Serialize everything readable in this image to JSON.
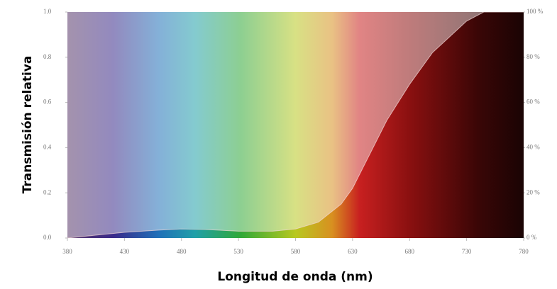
{
  "chart_data": {
    "type": "area",
    "y_label": "Transmisión relativa",
    "x_label": "Longitud de onda (nm)",
    "x": [
      380,
      400,
      430,
      460,
      480,
      500,
      530,
      560,
      580,
      600,
      620,
      630,
      640,
      660,
      680,
      700,
      730,
      745,
      780
    ],
    "values": [
      0,
      0.01,
      0.025,
      0.035,
      0.04,
      0.038,
      0.03,
      0.03,
      0.04,
      0.07,
      0.15,
      0.22,
      0.32,
      0.52,
      0.68,
      0.82,
      0.96,
      1.0,
      1.0
    ],
    "xlim": [
      380,
      780
    ],
    "xticks": [
      380,
      430,
      480,
      530,
      580,
      630,
      680,
      730,
      780
    ],
    "ylim": [
      0,
      1
    ],
    "yticks": [
      {
        "value": 0,
        "label": "0.0"
      },
      0.2,
      0.4,
      0.6,
      0.8,
      {
        "value": 1,
        "label": "1.0"
      }
    ],
    "y2lim": [
      0,
      100
    ],
    "y2ticks": [
      {
        "value": 0,
        "label": "0 %"
      },
      {
        "value": 20,
        "label": "20 %"
      },
      {
        "value": 40,
        "label": "40 %"
      },
      {
        "value": 60,
        "label": "60 %"
      },
      {
        "value": 80,
        "label": "80 %"
      },
      {
        "value": 100,
        "label": "100 %"
      }
    ],
    "line_color": "#f4d8d8"
  }
}
